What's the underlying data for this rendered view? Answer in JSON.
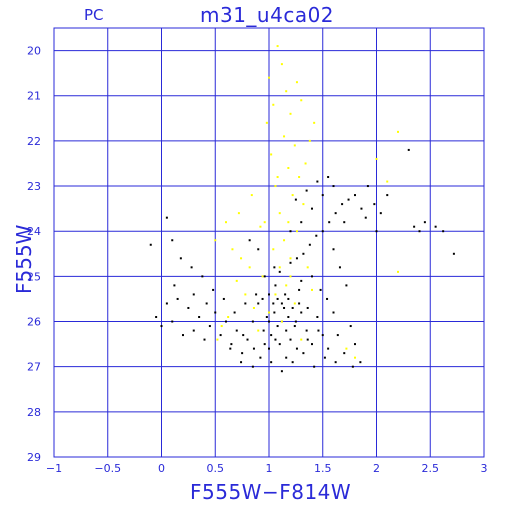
{
  "header": {
    "left_label": "PC"
  },
  "chart_data": {
    "type": "scatter",
    "title": "m31_u4ca02",
    "xlabel": "F555W−F814W",
    "ylabel": "F555W",
    "xlim": [
      -1,
      3
    ],
    "ylim": [
      29,
      19.5
    ],
    "y_inverted": true,
    "grid": true,
    "x_ticks": [
      -1,
      -0.5,
      0,
      0.5,
      1,
      1.5,
      2,
      2.5,
      3
    ],
    "x_tick_labels": [
      "−1",
      "−0.5",
      "0",
      "0.5",
      "1",
      "1.5",
      "2",
      "2.5",
      "3"
    ],
    "y_ticks": [
      20,
      21,
      22,
      23,
      24,
      25,
      26,
      27,
      28,
      29
    ],
    "y_tick_labels": [
      "20",
      "21",
      "22",
      "23",
      "24",
      "25",
      "26",
      "27",
      "28",
      "29"
    ],
    "colors": {
      "axes": "#2a2ad8",
      "grid": "#2a2ad8",
      "black_stars": "#000000",
      "yellow_stars": "#ffff00"
    },
    "series": [
      {
        "color": "#000000",
        "points": [
          [
            1.12,
            25.6
          ],
          [
            1.05,
            25.8
          ],
          [
            1.18,
            25.5
          ],
          [
            0.98,
            25.9
          ],
          [
            1.22,
            25.7
          ],
          [
            1.08,
            26.1
          ],
          [
            1.15,
            25.4
          ],
          [
            1.02,
            26.3
          ],
          [
            1.25,
            26.0
          ],
          [
            0.95,
            26.2
          ],
          [
            1.1,
            26.5
          ],
          [
            1.3,
            25.8
          ],
          [
            0.9,
            25.6
          ],
          [
            1.2,
            26.4
          ],
          [
            1.0,
            26.6
          ],
          [
            1.35,
            26.2
          ],
          [
            0.85,
            26.0
          ],
          [
            1.28,
            25.3
          ],
          [
            1.06,
            25.2
          ],
          [
            1.16,
            26.8
          ],
          [
            0.8,
            26.4
          ],
          [
            1.4,
            26.5
          ],
          [
            0.75,
            26.7
          ],
          [
            1.45,
            25.9
          ],
          [
            1.5,
            26.3
          ],
          [
            0.7,
            26.2
          ],
          [
            1.02,
            26.9
          ],
          [
            1.22,
            26.9
          ],
          [
            0.92,
            26.8
          ],
          [
            1.32,
            26.7
          ],
          [
            0.65,
            26.5
          ],
          [
            1.55,
            26.6
          ],
          [
            0.6,
            26.0
          ],
          [
            1.6,
            25.8
          ],
          [
            0.55,
            26.3
          ],
          [
            0.5,
            25.8
          ],
          [
            0.45,
            26.1
          ],
          [
            0.4,
            26.4
          ],
          [
            0.35,
            25.9
          ],
          [
            0.3,
            26.2
          ],
          [
            0.25,
            25.7
          ],
          [
            0.2,
            26.3
          ],
          [
            0.15,
            25.5
          ],
          [
            0.1,
            26.0
          ],
          [
            0.05,
            25.6
          ],
          [
            0.0,
            26.1
          ],
          [
            -0.05,
            25.9
          ],
          [
            0.12,
            25.2
          ],
          [
            0.3,
            25.4
          ],
          [
            0.42,
            25.6
          ],
          [
            1.62,
            26.9
          ],
          [
            1.7,
            26.7
          ],
          [
            1.8,
            26.5
          ],
          [
            1.85,
            26.9
          ],
          [
            1.78,
            27.0
          ],
          [
            0.85,
            27.0
          ],
          [
            1.12,
            27.1
          ],
          [
            0.96,
            25.0
          ],
          [
            1.05,
            24.8
          ],
          [
            1.1,
            24.9
          ],
          [
            1.2,
            24.7
          ],
          [
            1.26,
            24.6
          ],
          [
            1.32,
            24.5
          ],
          [
            1.38,
            24.3
          ],
          [
            1.44,
            24.1
          ],
          [
            1.5,
            24.0
          ],
          [
            1.56,
            23.8
          ],
          [
            1.62,
            23.6
          ],
          [
            1.68,
            23.4
          ],
          [
            1.74,
            23.3
          ],
          [
            1.8,
            23.2
          ],
          [
            1.86,
            23.5
          ],
          [
            1.92,
            23.0
          ],
          [
            1.98,
            23.4
          ],
          [
            2.04,
            23.6
          ],
          [
            2.1,
            23.2
          ],
          [
            1.5,
            23.2
          ],
          [
            1.4,
            23.5
          ],
          [
            1.3,
            23.8
          ],
          [
            1.2,
            24.0
          ],
          [
            1.25,
            23.3
          ],
          [
            1.35,
            23.1
          ],
          [
            1.45,
            22.9
          ],
          [
            1.55,
            22.8
          ],
          [
            1.6,
            23.0
          ],
          [
            1.7,
            23.8
          ],
          [
            1.9,
            23.7
          ],
          [
            2.0,
            24.0
          ],
          [
            2.3,
            22.2
          ],
          [
            2.35,
            23.9
          ],
          [
            2.4,
            24.0
          ],
          [
            2.45,
            23.8
          ],
          [
            2.55,
            23.9
          ],
          [
            2.62,
            24.0
          ],
          [
            2.72,
            24.5
          ],
          [
            0.05,
            23.7
          ],
          [
            -0.1,
            24.3
          ],
          [
            0.1,
            24.2
          ],
          [
            0.18,
            24.6
          ],
          [
            0.9,
            24.4
          ],
          [
            0.82,
            24.2
          ],
          [
            1.6,
            24.4
          ],
          [
            1.66,
            24.8
          ],
          [
            1.72,
            25.2
          ],
          [
            1.4,
            25.0
          ],
          [
            1.48,
            25.3
          ],
          [
            1.54,
            25.5
          ],
          [
            1.3,
            25.1
          ],
          [
            0.88,
            25.4
          ],
          [
            0.78,
            25.6
          ],
          [
            0.68,
            25.8
          ],
          [
            0.58,
            25.5
          ],
          [
            0.48,
            25.3
          ],
          [
            0.38,
            25.0
          ],
          [
            0.28,
            24.8
          ],
          [
            0.64,
            26.6
          ],
          [
            0.74,
            26.9
          ],
          [
            1.42,
            27.0
          ],
          [
            1.52,
            26.8
          ],
          [
            1.64,
            26.3
          ],
          [
            1.76,
            26.1
          ],
          [
            1.0,
            25.4
          ],
          [
            1.04,
            25.6
          ],
          [
            1.14,
            25.7
          ],
          [
            1.18,
            25.9
          ],
          [
            1.24,
            26.1
          ],
          [
            1.08,
            25.5
          ],
          [
            1.12,
            26.0
          ],
          [
            0.94,
            25.5
          ],
          [
            1.28,
            25.6
          ],
          [
            1.36,
            25.7
          ],
          [
            1.0,
            26.0
          ],
          [
            1.16,
            26.2
          ],
          [
            1.06,
            26.4
          ],
          [
            0.96,
            26.5
          ],
          [
            1.26,
            26.6
          ],
          [
            0.86,
            26.6
          ],
          [
            1.36,
            26.4
          ],
          [
            0.76,
            26.3
          ],
          [
            1.46,
            26.2
          ]
        ]
      },
      {
        "color": "#ffff00",
        "points": [
          [
            1.08,
            19.9
          ],
          [
            1.12,
            20.3
          ],
          [
            1.0,
            20.6
          ],
          [
            1.16,
            20.9
          ],
          [
            1.04,
            21.2
          ],
          [
            1.2,
            21.4
          ],
          [
            0.98,
            21.6
          ],
          [
            1.14,
            21.9
          ],
          [
            1.24,
            22.1
          ],
          [
            1.02,
            22.3
          ],
          [
            1.18,
            22.6
          ],
          [
            1.28,
            22.8
          ],
          [
            1.06,
            23.0
          ],
          [
            1.22,
            23.2
          ],
          [
            1.32,
            23.4
          ],
          [
            1.1,
            23.6
          ],
          [
            0.96,
            23.8
          ],
          [
            1.26,
            24.0
          ],
          [
            1.14,
            24.2
          ],
          [
            1.04,
            24.4
          ],
          [
            1.2,
            24.6
          ],
          [
            1.1,
            24.8
          ],
          [
            0.94,
            25.0
          ],
          [
            1.16,
            25.2
          ],
          [
            1.06,
            25.4
          ],
          [
            1.24,
            25.6
          ],
          [
            1.0,
            25.8
          ],
          [
            1.12,
            26.0
          ],
          [
            0.9,
            26.2
          ],
          [
            1.3,
            26.4
          ],
          [
            0.66,
            24.4
          ],
          [
            0.74,
            24.6
          ],
          [
            0.82,
            24.8
          ],
          [
            0.7,
            25.1
          ],
          [
            0.78,
            25.4
          ],
          [
            0.86,
            25.7
          ],
          [
            0.62,
            25.9
          ],
          [
            0.56,
            26.1
          ],
          [
            0.52,
            26.4
          ],
          [
            0.5,
            24.2
          ],
          [
            0.6,
            23.8
          ],
          [
            0.72,
            23.6
          ],
          [
            0.84,
            23.2
          ],
          [
            0.92,
            23.9
          ],
          [
            1.34,
            22.5
          ],
          [
            1.38,
            22.0
          ],
          [
            1.42,
            21.6
          ],
          [
            1.3,
            21.1
          ],
          [
            1.26,
            20.7
          ],
          [
            2.0,
            22.4
          ],
          [
            2.1,
            22.9
          ],
          [
            2.2,
            21.8
          ],
          [
            2.2,
            24.9
          ],
          [
            1.72,
            26.6
          ],
          [
            1.8,
            26.8
          ],
          [
            1.36,
            24.8
          ],
          [
            1.4,
            25.3
          ],
          [
            1.2,
            25.0
          ],
          [
            1.18,
            23.8
          ],
          [
            1.08,
            22.8
          ]
        ]
      }
    ]
  }
}
